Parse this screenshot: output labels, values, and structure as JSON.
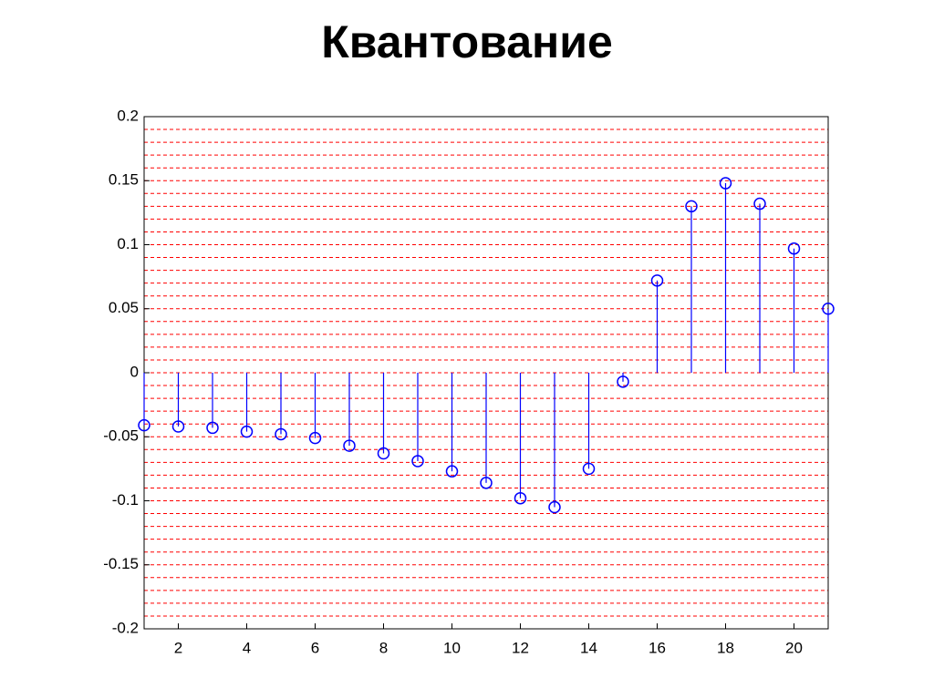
{
  "chart_data": {
    "type": "stem",
    "title": "Квантование",
    "x": [
      1,
      2,
      3,
      4,
      5,
      6,
      7,
      8,
      9,
      10,
      11,
      12,
      13,
      14,
      15,
      16,
      17,
      18,
      19,
      20,
      21
    ],
    "values": [
      -0.041,
      -0.042,
      -0.043,
      -0.046,
      -0.048,
      -0.051,
      -0.057,
      -0.063,
      -0.069,
      -0.077,
      -0.086,
      -0.098,
      -0.105,
      -0.075,
      -0.007,
      0.072,
      0.13,
      0.148,
      0.132,
      0.097,
      0.05
    ],
    "color": "#0000ff",
    "levels": [
      -0.2,
      -0.19,
      -0.18,
      -0.17,
      -0.16,
      -0.15,
      -0.14,
      -0.13,
      -0.12,
      -0.11,
      -0.1,
      -0.09,
      -0.08,
      -0.07,
      -0.06,
      -0.05,
      -0.04,
      -0.03,
      -0.02,
      -0.01,
      0,
      0.01,
      0.02,
      0.03,
      0.04,
      0.05,
      0.06,
      0.07,
      0.08,
      0.09,
      0.1,
      0.11,
      0.12,
      0.13,
      0.14,
      0.15,
      0.16,
      0.17,
      0.18,
      0.19,
      0.2
    ],
    "level_color": "#ff0000",
    "xlim": [
      1,
      21
    ],
    "xticks": [
      2,
      4,
      6,
      8,
      10,
      12,
      14,
      16,
      18,
      20
    ],
    "ylim": [
      -0.2,
      0.2
    ],
    "yticks": [
      0.2,
      0.15,
      0.1,
      0.05,
      0,
      -0.05,
      -0.1,
      -0.15,
      -0.2
    ]
  }
}
